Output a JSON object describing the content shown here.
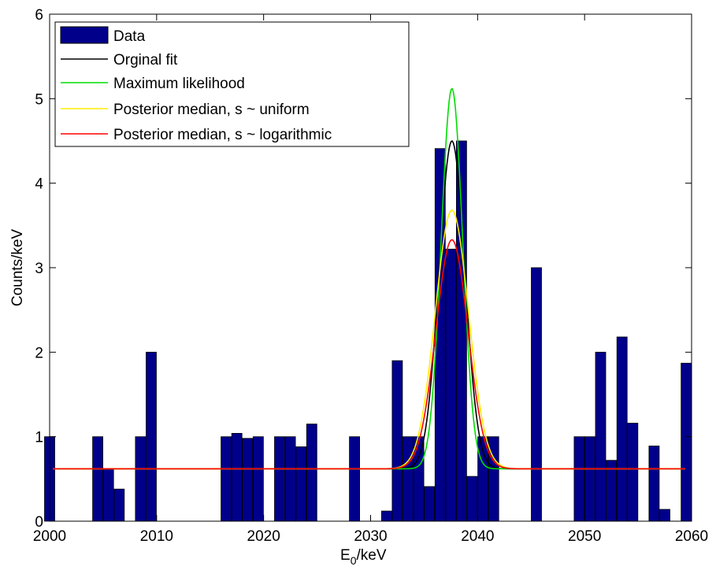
{
  "chart_data": {
    "type": "bar",
    "xlabel": "E",
    "xlabel_sub": "0",
    "xlabel_unit": "/keV",
    "ylabel": "Counts/keV",
    "xlim": [
      2000,
      2060
    ],
    "ylim": [
      0,
      6
    ],
    "grid": false,
    "legend_placement": "top-left",
    "xticks": [
      "2000",
      "2010",
      "2020",
      "2030",
      "2040",
      "2050",
      "2060"
    ],
    "yticks": [
      "0",
      "1",
      "2",
      "3",
      "4",
      "5",
      "6"
    ],
    "bars": {
      "name": "Data",
      "color": "#00008B",
      "x": [
        2000.5,
        2005.0,
        2006.0,
        2007.0,
        2009.0,
        2010.0,
        2017.0,
        2018.0,
        2019.0,
        2020.0,
        2022.0,
        2023.0,
        2024.0,
        2025.0,
        2029.0,
        2032.0,
        2033.0,
        2034.0,
        2035.0,
        2036.0,
        2037.0,
        2038.0,
        2039.0,
        2040.0,
        2041.0,
        2042.0,
        2046.0,
        2050.0,
        2051.0,
        2052.0,
        2053.0,
        2054.0,
        2055.0,
        2057.0,
        2058.0,
        2060.0
      ],
      "values": [
        1.0,
        1.0,
        0.62,
        0.38,
        1.0,
        2.0,
        1.0,
        1.04,
        0.98,
        1.0,
        1.0,
        1.0,
        0.88,
        1.15,
        1.0,
        0.12,
        1.9,
        1.0,
        1.0,
        0.41,
        4.41,
        3.22,
        4.5,
        0.53,
        1.0,
        1.0,
        3.0,
        1.0,
        1.0,
        2.0,
        0.72,
        2.18,
        1.16,
        0.89,
        0.14,
        1.87
      ]
    },
    "series": [
      {
        "name": "Orginal fit",
        "color": "#000000",
        "background": 0.62,
        "peak": 4.5,
        "center": 2037.6,
        "sigma": 1.2
      },
      {
        "name": "Maximum likelihood",
        "color": "#00DD00",
        "background": 0.62,
        "peak": 5.12,
        "center": 2037.6,
        "sigma": 1.0
      },
      {
        "name": "Posterior median, s ~ uniform",
        "color": "#FFEE00",
        "background": 0.62,
        "peak": 3.68,
        "center": 2037.6,
        "sigma": 1.55
      },
      {
        "name": "Posterior median, s ~ logarithmic",
        "color": "#FF0000",
        "background": 0.62,
        "peak": 3.33,
        "center": 2037.6,
        "sigma": 1.5
      }
    ]
  }
}
